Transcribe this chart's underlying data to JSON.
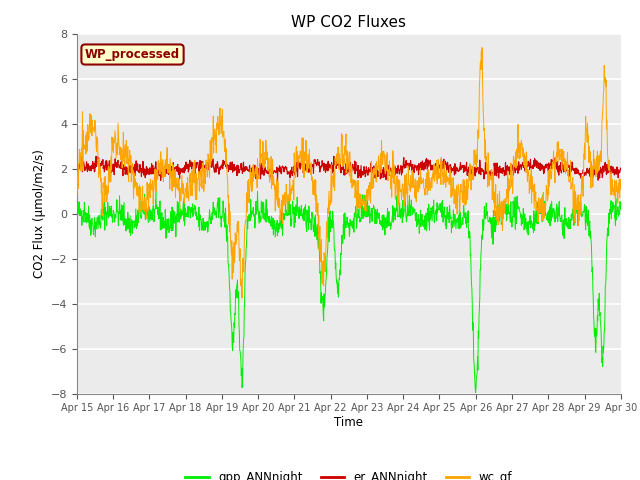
{
  "title": "WP CO2 Fluxes",
  "xlabel": "Time",
  "ylabel": "CO2 Flux (μmol/m2/s)",
  "ylim": [
    -8,
    8
  ],
  "yticks": [
    -8,
    -6,
    -4,
    -2,
    0,
    2,
    4,
    6,
    8
  ],
  "x_labels": [
    "Apr 15",
    "Apr 16",
    "Apr 17",
    "Apr 18",
    "Apr 19",
    "Apr 20",
    "Apr 21",
    "Apr 22",
    "Apr 23",
    "Apr 24",
    "Apr 25",
    "Apr 26",
    "Apr 27",
    "Apr 28",
    "Apr 29",
    "Apr 30"
  ],
  "annotation_text": "WP_processed",
  "annotation_color": "#8B0000",
  "annotation_bg": "#FFFFCC",
  "annotation_border": "#8B0000",
  "line_colors": {
    "gpp": "#00EE00",
    "er": "#CC0000",
    "wc": "#FFA500"
  },
  "legend_labels": [
    "gpp_ANNnight",
    "er_ANNnight",
    "wc_gf"
  ],
  "legend_colors": [
    "#00EE00",
    "#CC0000",
    "#FFA500"
  ],
  "fig_bg": "#FFFFFF",
  "plot_bg": "#EBEBEB",
  "n_points": 1440,
  "seed": 42
}
